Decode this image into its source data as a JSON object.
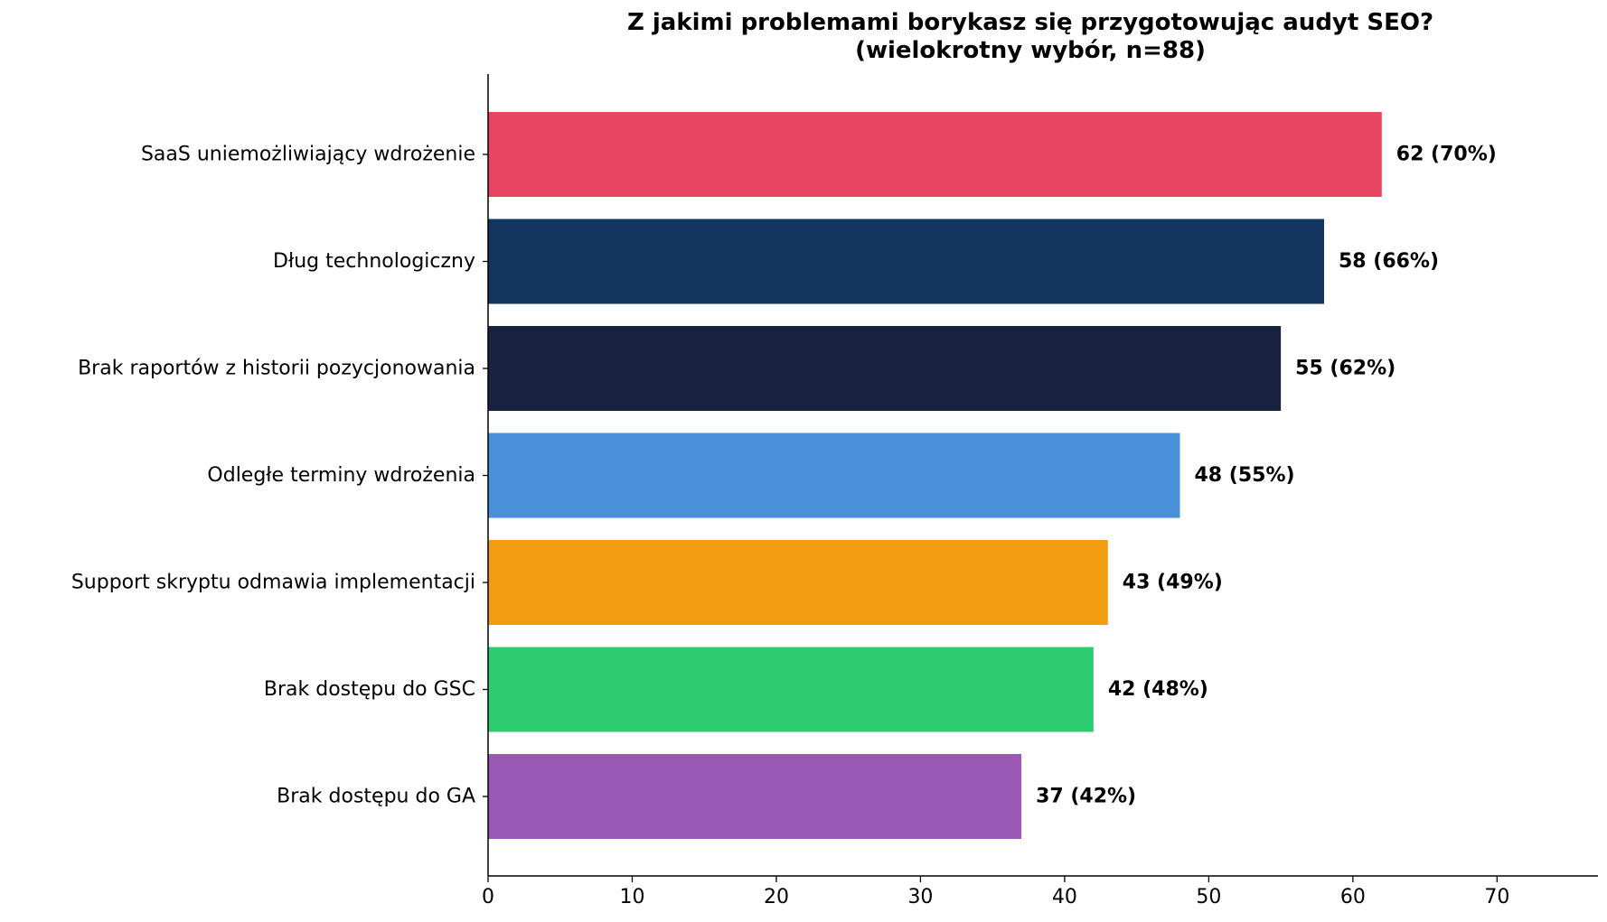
{
  "chart_data": {
    "type": "bar",
    "orientation": "horizontal",
    "title": "Z jakimi problemami borykasz się przygotowując audyt SEO?",
    "subtitle": "(wielokrotny wybór, n=88)",
    "xlabel": "",
    "ylabel": "",
    "xlim": [
      0,
      77
    ],
    "xticks": [
      0,
      10,
      20,
      30,
      40,
      50,
      60,
      70
    ],
    "grid": false,
    "legend": "none",
    "categories": [
      "SaaS uniemożliwiający wdrożenie",
      "Dług technologiczny",
      "Brak raportów z historii pozycjonowania",
      "Odległe terminy wdrożenia",
      "Support skryptu odmawia implementacji",
      "Brak dostępu do GSC",
      "Brak dostępu do GA"
    ],
    "values": [
      62,
      58,
      55,
      48,
      43,
      42,
      37
    ],
    "value_labels": [
      "62 (70%)",
      "58 (66%)",
      "55 (62%)",
      "48 (55%)",
      "43 (49%)",
      "42 (48%)",
      "37 (42%)"
    ],
    "colors": [
      "#e84562",
      "#12345f",
      "#19223f",
      "#4a90d9",
      "#f39c12",
      "#2ecc71",
      "#9b59b6"
    ]
  }
}
